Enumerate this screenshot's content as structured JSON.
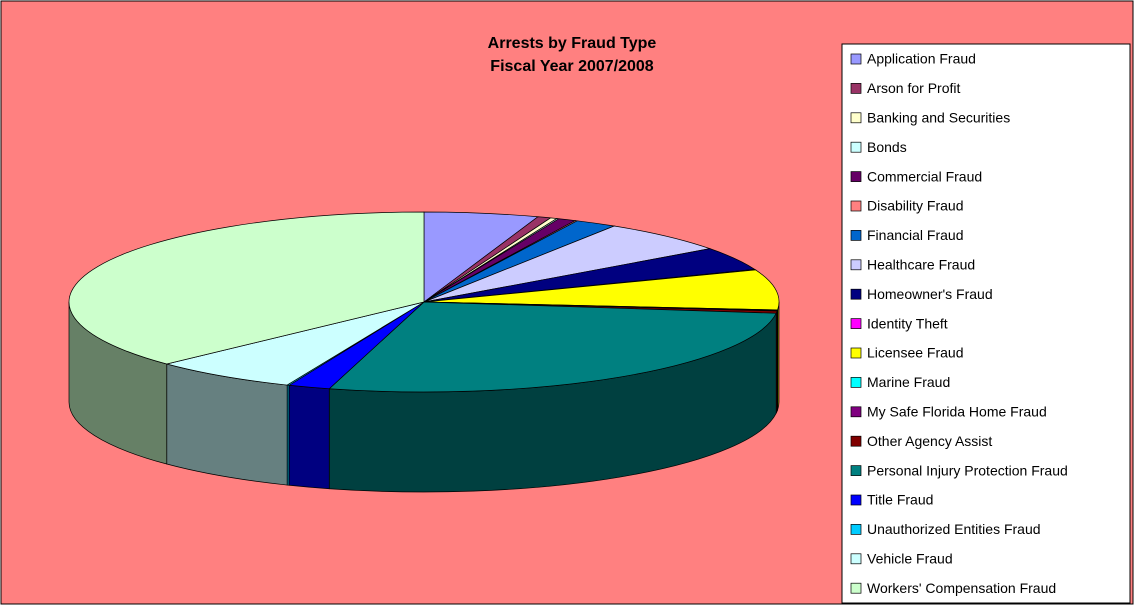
{
  "chart_data": {
    "type": "pie3d",
    "title": "Arrests by Fraud Type",
    "subtitle": "Fiscal Year 2007/2008",
    "categories": [
      "Application Fraud",
      "Arson for Profit",
      "Banking and Securities",
      "Bonds",
      "Commercial Fraud",
      "Disability Fraud",
      "Financial Fraud",
      "Healthcare Fraud",
      "Homeowner's Fraud",
      "Identity Theft",
      "Licensee Fraud",
      "Marine Fraud",
      "My Safe Florida Home Fraud",
      "Other Agency Assist",
      "Personal Injury Protection Fraud",
      "Title Fraud",
      "Unauthorized Entities Fraud",
      "Vehicle Fraud",
      "Workers' Compensation Fraud"
    ],
    "values": [
      5.2,
      0.6,
      0.3,
      0.1,
      0.8,
      0.1,
      1.9,
      5.9,
      4.2,
      0.1,
      7.2,
      0.1,
      0.1,
      0.4,
      27.3,
      1.9,
      0.1,
      6.6,
      37.1
    ],
    "colors": [
      "#9999ff",
      "#993366",
      "#ffffcc",
      "#ccffff",
      "#660066",
      "#ff8080",
      "#0066cc",
      "#ccccff",
      "#000080",
      "#ff00ff",
      "#ffff00",
      "#00ffff",
      "#800080",
      "#800000",
      "#008080",
      "#0000ff",
      "#00ccff",
      "#ccffff",
      "#ccffcc"
    ],
    "legend": "right"
  }
}
